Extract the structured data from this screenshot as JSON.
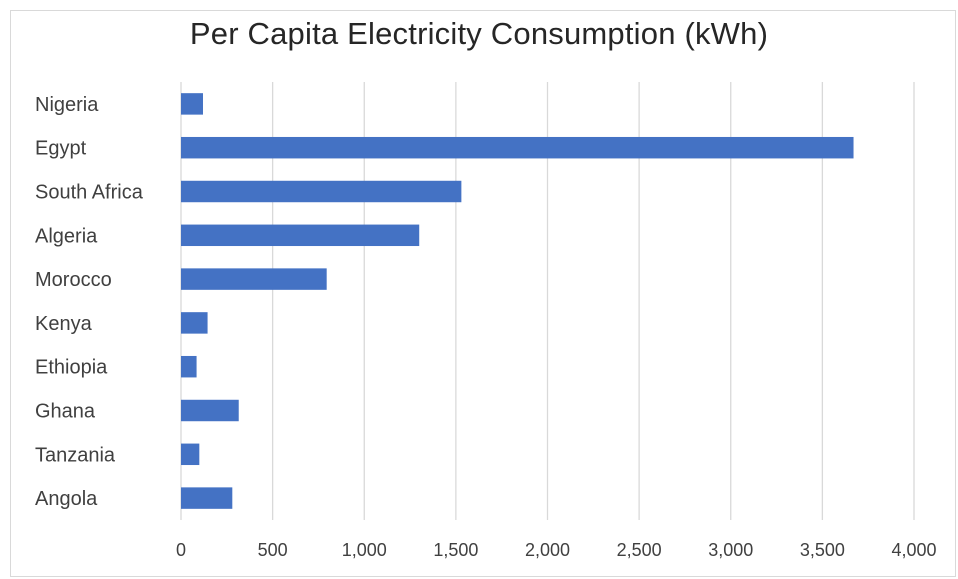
{
  "chart_data": {
    "type": "bar",
    "orientation": "horizontal",
    "title": "Per Capita Electricity Consumption (kWh)",
    "xlabel": "",
    "ylabel": "",
    "categories": [
      "Nigeria",
      "Egypt",
      "South Africa",
      "Algeria",
      "Morocco",
      "Kenya",
      "Ethiopia",
      "Ghana",
      "Tanzania",
      "Angola"
    ],
    "values": [
      120,
      3670,
      1530,
      1300,
      795,
      145,
      85,
      315,
      100,
      280
    ],
    "xlim": [
      0,
      4000
    ],
    "x_ticks": [
      0,
      500,
      1000,
      1500,
      2000,
      2500,
      3000,
      3500,
      4000
    ],
    "x_tick_labels": [
      "0",
      "500",
      "1,000",
      "1,500",
      "2,000",
      "2,500",
      "3,000",
      "3,500",
      "4,000"
    ],
    "grid": "vertical",
    "legend": "none",
    "bar_color": "#4472C4",
    "grid_color": "#d9d9d9"
  }
}
